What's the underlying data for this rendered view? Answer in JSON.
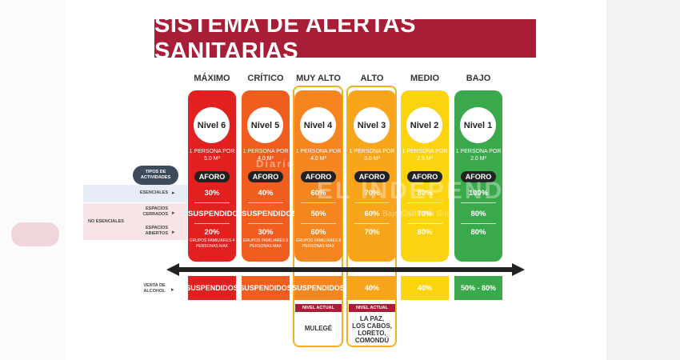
{
  "title": "SISTEMA DE ALERTAS SANITARIAS",
  "levels": [
    {
      "name": "MÁXIMO",
      "nivel": "Nivel 6",
      "persona": "1 PERSONA POR 5.0 M²",
      "esenciales": "30%",
      "cerrados": "SUSPENDIDOS",
      "abiertos": "20%",
      "note": "GRUPOS FAMILIARES 4 PERSONAS MAX",
      "venta": "SUSPENDIDOS",
      "color": "#e2201f"
    },
    {
      "name": "CRÍTICO",
      "nivel": "Nivel 5",
      "persona": "1 PERSONA POR 4.0 M²",
      "esenciales": "40%",
      "cerrados": "SUSPENDIDOS",
      "abiertos": "30%",
      "note": "GRUPOS FAMILIARES 6 PERSONAS MAX",
      "venta": "SUSPENDIDOS",
      "color": "#f15d1f"
    },
    {
      "name": "MUY ALTO",
      "nivel": "Nivel 4",
      "persona": "1 PERSONA POR 4.0 M²",
      "esenciales": "60%",
      "cerrados": "50%",
      "abiertos": "60%",
      "note": "GRUPOS FAMILIARES 8 PERSONAS MAX",
      "venta": "SUSPENDIDOS",
      "color": "#f5861f"
    },
    {
      "name": "ALTO",
      "nivel": "Nivel 3",
      "persona": "1 PERSONA POR 3.0 M²",
      "esenciales": "70%",
      "cerrados": "60%",
      "abiertos": "70%",
      "note": "",
      "venta": "40%",
      "color": "#f9a51c"
    },
    {
      "name": "MEDIO",
      "nivel": "Nivel 2",
      "persona": "1 PERSONA POR 2.5 M²",
      "esenciales": "80%",
      "cerrados": "70%",
      "abiertos": "80%",
      "note": "",
      "venta": "40%",
      "color": "#fbd40f"
    },
    {
      "name": "BAJO",
      "nivel": "Nivel 1",
      "persona": "1 PERSONA POR 2.0 M²",
      "esenciales": "100%",
      "cerrados": "80%",
      "abiertos": "80%",
      "note": "",
      "venta": "50% - 80%",
      "color": "#3aa94b"
    }
  ],
  "aforo_label": "AFORO",
  "tipos_label": "TIPOS DE ACTIVIDADES",
  "rows": {
    "esenciales": "ESENCIALES",
    "cerrados": "ESPACIOS CERRADOS",
    "abiertos": "ESPACIOS ABIERTOS",
    "no_esenciales": "NO ESENCIALES",
    "venta": "VENTA DE ALCOHOL"
  },
  "nivel_actual_label": "NIVEL ACTUAL",
  "current": {
    "muy_alto": "MULEGÉ",
    "alto_lines": [
      "LA PAZ,",
      "LOS CABOS,",
      "LORETO,",
      "COMONDÚ"
    ]
  },
  "watermark": {
    "line1": "Diario",
    "line2": "EL INDEPENDIENTE",
    "line3": "Baja California Sur"
  }
}
